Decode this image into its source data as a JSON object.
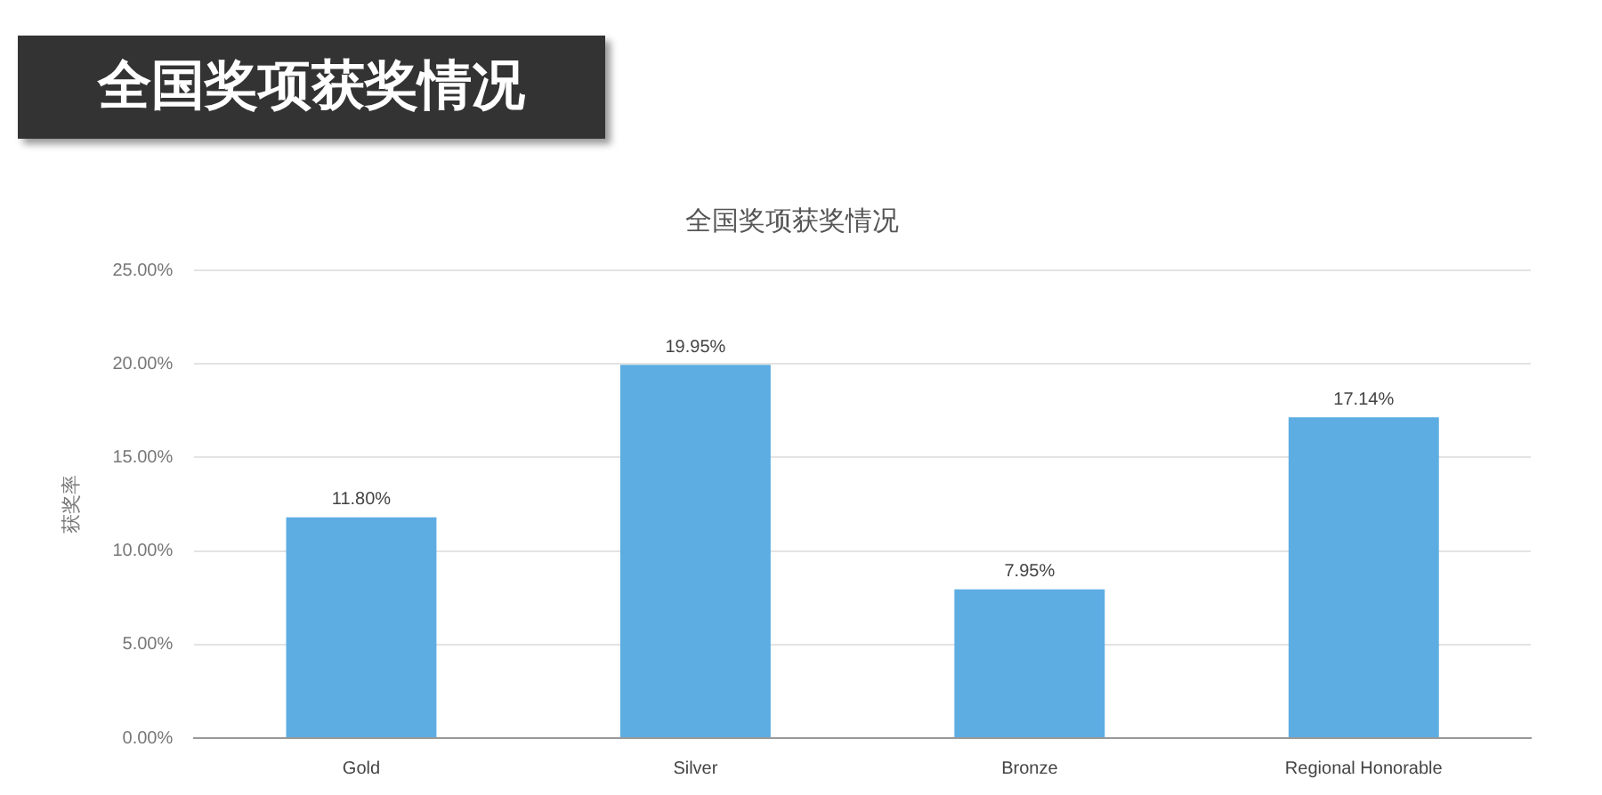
{
  "chart_data": {
    "type": "bar",
    "title": "全国奖项获奖情况",
    "subtitle": "全国奖项获奖情况",
    "ylabel": "获奖率",
    "categories": [
      "Gold",
      "Silver",
      "Bronze",
      "Regional Honorable"
    ],
    "values": [
      11.8,
      19.95,
      7.95,
      17.14
    ],
    "color": "#5dade2",
    "value_labels": [
      "11.80%",
      "19.95%",
      "7.95%",
      "17.14%"
    ],
    "ylim": [
      0,
      25
    ],
    "yticks": [
      {
        "value": 0,
        "label": "0.00%"
      },
      {
        "value": 5,
        "label": "5.00%"
      },
      {
        "value": 10,
        "label": "10.00%"
      },
      {
        "value": 15,
        "label": "15.00%"
      },
      {
        "value": 20,
        "label": "20.00%"
      },
      {
        "value": 25,
        "label": "25.00%"
      }
    ],
    "grid": "y",
    "legend": false
  }
}
